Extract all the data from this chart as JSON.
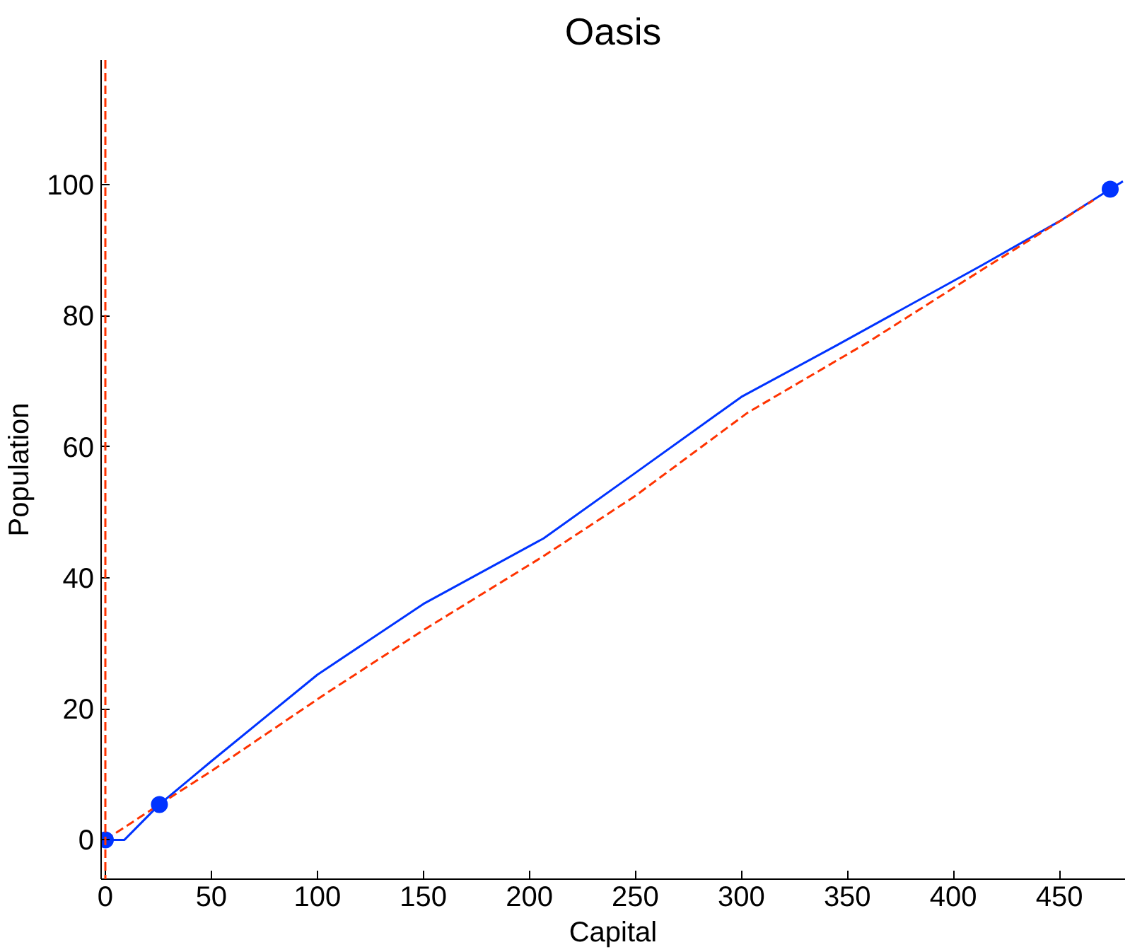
{
  "chart_data": {
    "type": "line",
    "title": "Oasis",
    "xlabel": "Capital",
    "ylabel": "Population",
    "xlim": [
      -2,
      481
    ],
    "ylim": [
      -6,
      119
    ],
    "xticks": [
      0,
      50,
      100,
      150,
      200,
      250,
      300,
      350,
      400,
      450
    ],
    "yticks": [
      0,
      20,
      40,
      60,
      80,
      100
    ],
    "grid": false,
    "series": [
      {
        "color": "#0033ff",
        "line_style": "solid",
        "x": [
          0,
          9,
          25.5,
          50,
          100,
          150,
          206.7,
          250,
          300,
          344.6,
          413.5,
          450,
          474,
          480
        ],
        "values": [
          0,
          0,
          5.4,
          12,
          25.2,
          36,
          46,
          56,
          67.6,
          75.4,
          87.7,
          94.4,
          99.3,
          100.5
        ]
      },
      {
        "color": "#ff3300",
        "line_style": "dashed",
        "x": [
          0,
          25.5,
          50,
          103,
          150,
          206.7,
          250,
          303,
          360,
          413.5,
          466
        ],
        "values": [
          0,
          5.4,
          10.5,
          22.1,
          32,
          43.3,
          52.5,
          65.2,
          76,
          87,
          97.6
        ]
      },
      {
        "type": "scatter",
        "marker": "circle",
        "color": "#0033ff",
        "x": [
          0,
          474
        ],
        "values": [
          0,
          99.3
        ]
      },
      {
        "type": "scatter",
        "marker": "circle",
        "color": "#0033ff",
        "x": [
          25.5
        ],
        "values": [
          5.4
        ]
      }
    ],
    "ref_lines": [
      {
        "axis": "x",
        "value": 0,
        "color": "#ff3300",
        "line_style": "dashed"
      }
    ]
  }
}
